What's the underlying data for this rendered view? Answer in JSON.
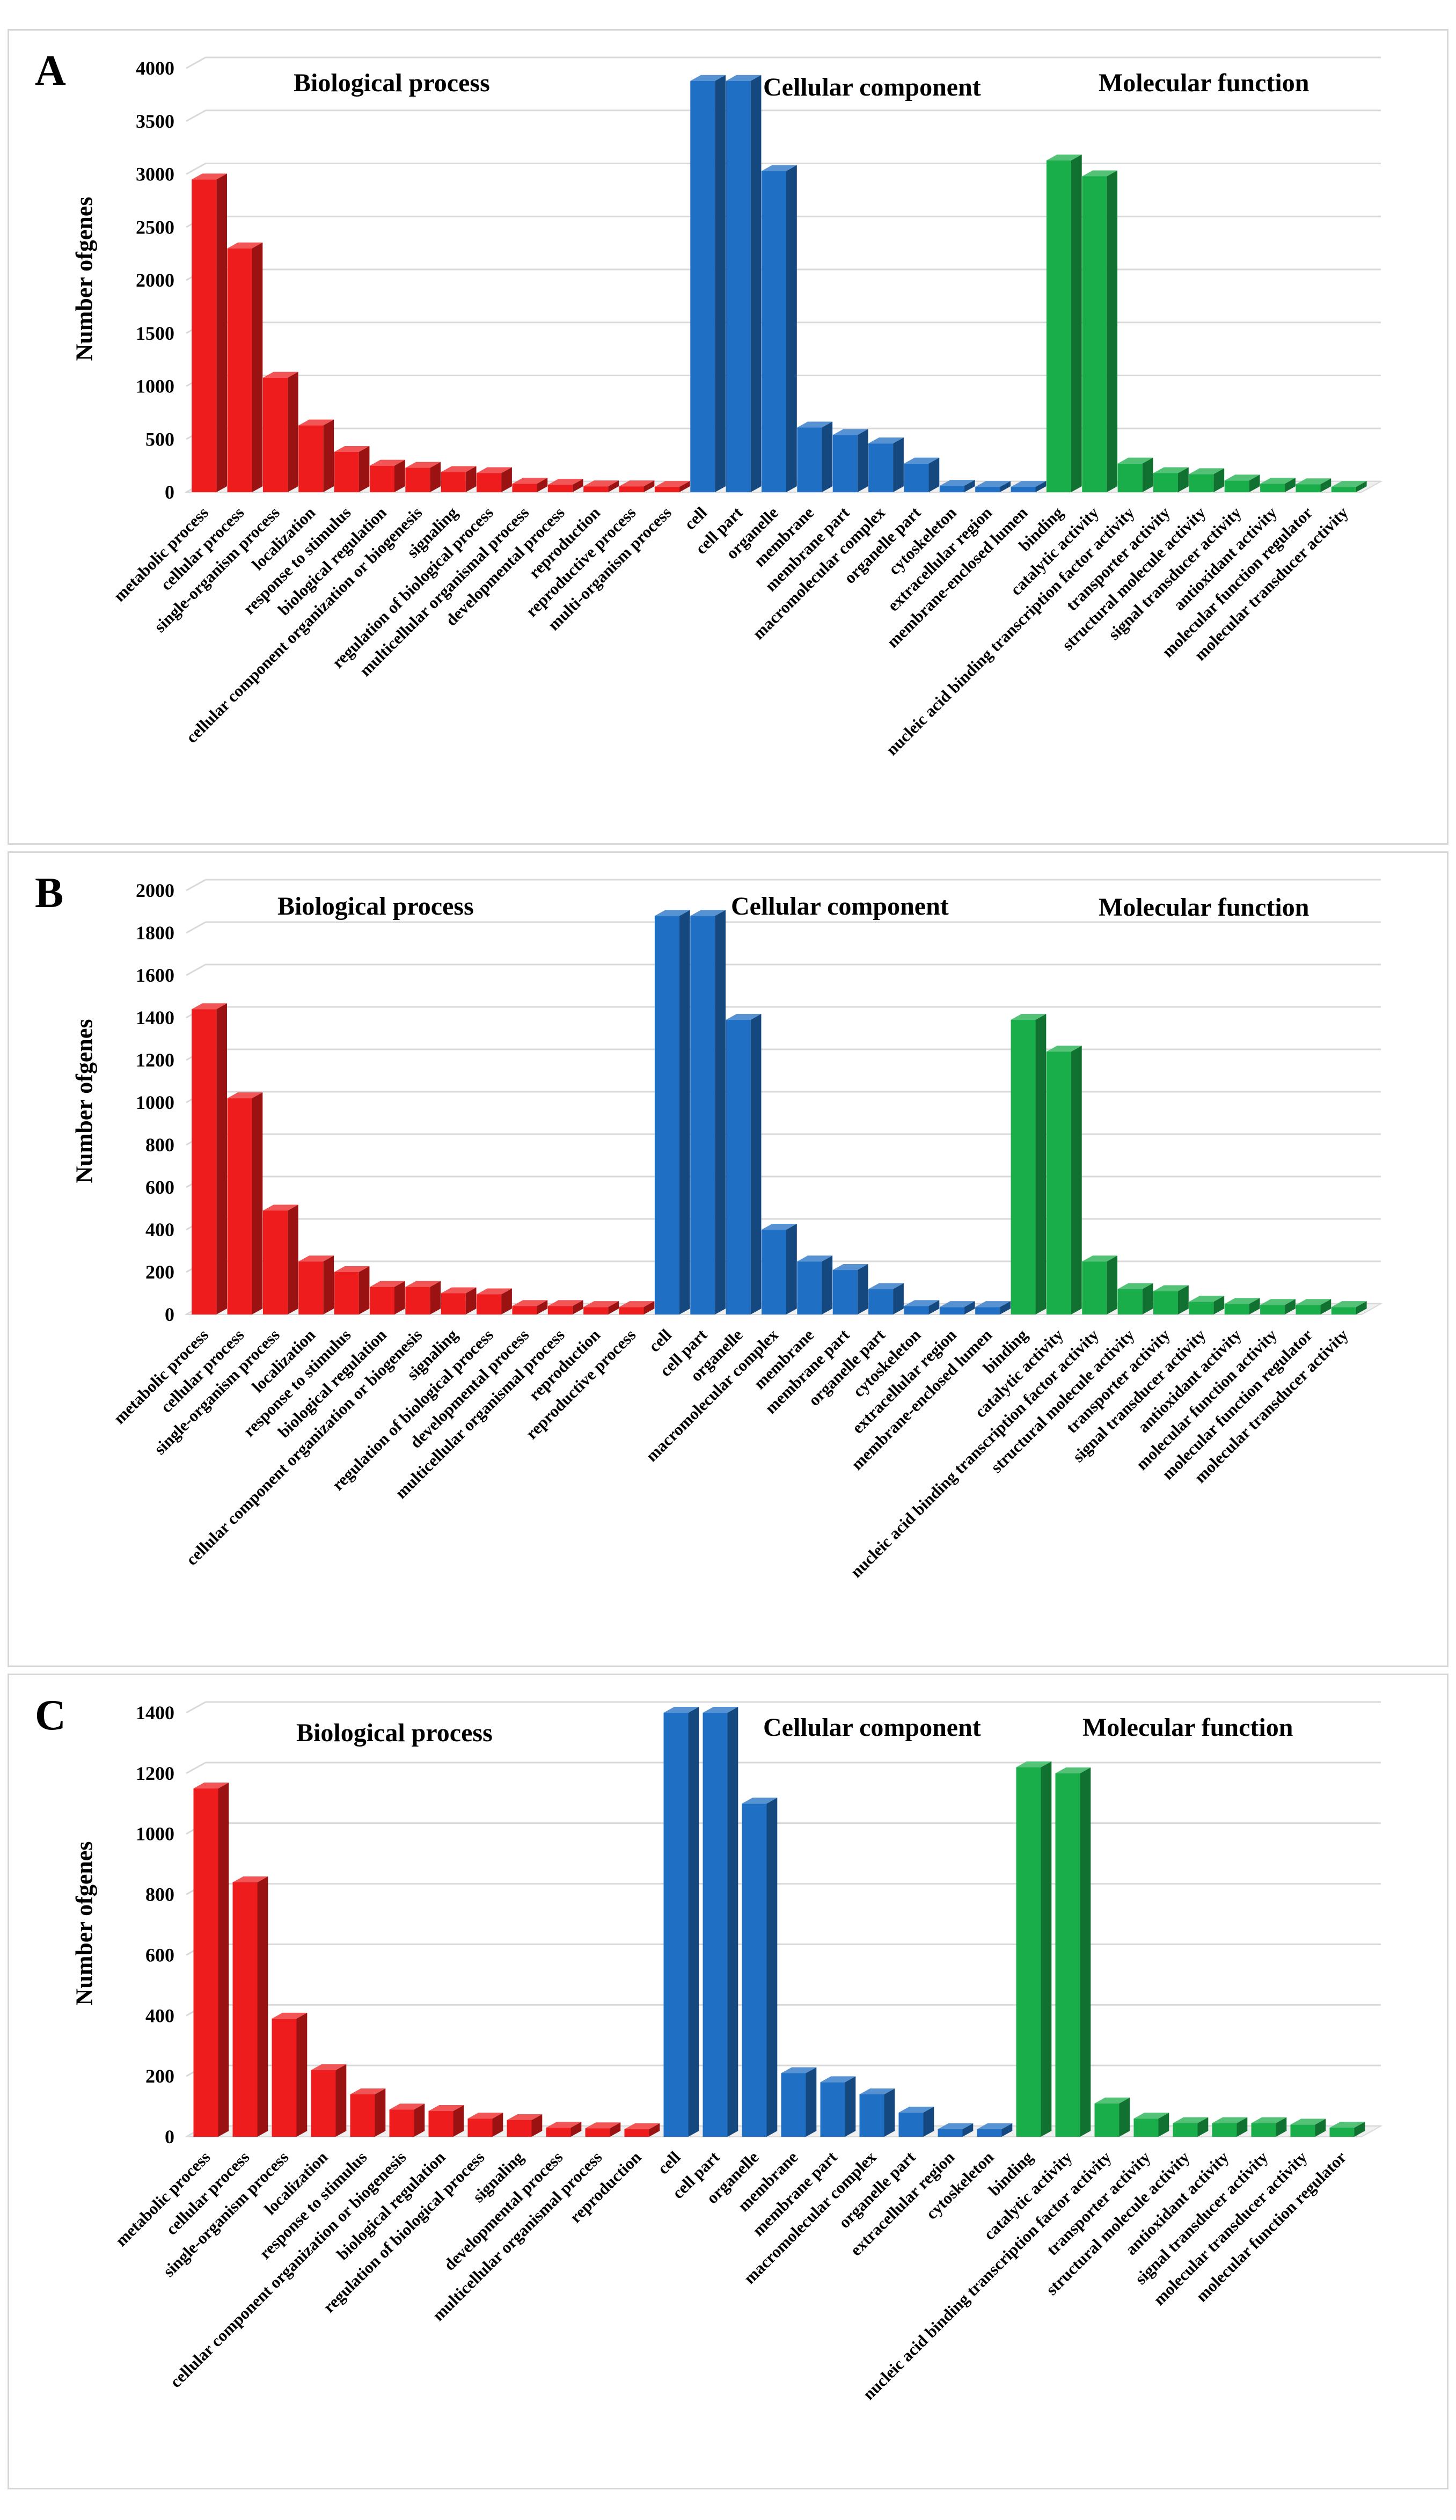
{
  "chart_data": [
    {
      "panel": "A",
      "type": "bar",
      "ylabel": "Number ofgenes",
      "yticks": [
        0,
        500,
        1000,
        1500,
        2000,
        2500,
        3000,
        3500,
        4000
      ],
      "ylim": [
        0,
        4000
      ],
      "groups": [
        {
          "name": "Biological process",
          "color": "#ee1c1c",
          "categories": [
            "metabolic process",
            "cellular process",
            "single-organism process",
            "localization",
            "response to stimulus",
            "biological regulation",
            "cellular component organization or biogenesis",
            "signaling",
            "regulation of biological process",
            "multicellular organismal process",
            "developmental process",
            "reproduction",
            "reproductive process",
            "multi-organism process"
          ],
          "values": [
            2950,
            2300,
            1080,
            630,
            380,
            250,
            230,
            190,
            180,
            80,
            70,
            55,
            55,
            50
          ]
        },
        {
          "name": "Cellular component",
          "color": "#1f6fc4",
          "categories": [
            "cell",
            "cell part",
            "organelle",
            "membrane",
            "membrane part",
            "macromolecular complex",
            "organelle part",
            "cytoskeleton",
            "extracellular region",
            "membrane-enclosed lumen"
          ],
          "values": [
            3880,
            3880,
            3030,
            610,
            540,
            460,
            270,
            60,
            50,
            50
          ]
        },
        {
          "name": "Molecular function",
          "color": "#1aae4a",
          "categories": [
            "binding",
            "catalytic activity",
            "nucleic acid binding transcription factor activity",
            "transporter activity",
            "structural molecule activity",
            "signal transducer activity",
            "antioxidant activity",
            "molecular function regulator",
            "molecular transducer activity"
          ],
          "values": [
            3130,
            2980,
            270,
            180,
            170,
            110,
            80,
            75,
            50
          ]
        }
      ]
    },
    {
      "panel": "B",
      "type": "bar",
      "ylabel": "Number ofgenes",
      "yticks": [
        0,
        200,
        400,
        600,
        800,
        1000,
        1200,
        1400,
        1600,
        1800,
        2000
      ],
      "ylim": [
        0,
        2000
      ],
      "groups": [
        {
          "name": "Biological process",
          "color": "#ee1c1c",
          "categories": [
            "metabolic process",
            "cellular process",
            "single-organism process",
            "localization",
            "response to stimulus",
            "biological regulation",
            "cellular component organization or biogenesis",
            "signaling",
            "regulation of biological process",
            "developmental process",
            "multicellular organismal process",
            "reproduction",
            "reproductive process"
          ],
          "values": [
            1440,
            1020,
            490,
            250,
            200,
            130,
            130,
            100,
            95,
            40,
            40,
            35,
            35
          ]
        },
        {
          "name": "Cellular component",
          "color": "#1f6fc4",
          "categories": [
            "cell",
            "cell part",
            "organelle",
            "macromolecular complex",
            "membrane",
            "membrane part",
            "organelle part",
            "cytoskeleton",
            "extracellular region",
            "membrane-enclosed lumen"
          ],
          "values": [
            1880,
            1880,
            1390,
            400,
            250,
            210,
            120,
            40,
            35,
            35
          ]
        },
        {
          "name": "Molecular function",
          "color": "#1aae4a",
          "categories": [
            "binding",
            "catalytic activity",
            "nucleic acid binding transcription factor activity",
            "structural molecule activity",
            "transporter activity",
            "signal transducer activity",
            "antioxidant activity",
            "molecular function activity",
            "molecular function regulator",
            "molecular transducer activity"
          ],
          "values": [
            1390,
            1240,
            250,
            120,
            110,
            60,
            50,
            45,
            45,
            35
          ]
        }
      ]
    },
    {
      "panel": "C",
      "type": "bar",
      "ylabel": "Number ofgenes",
      "yticks": [
        0,
        200,
        400,
        600,
        800,
        1000,
        1200,
        1400
      ],
      "ylim": [
        0,
        1400
      ],
      "groups": [
        {
          "name": "Biological process",
          "color": "#ee1c1c",
          "categories": [
            "metabolic process",
            "cellular process",
            "single-organism process",
            "localization",
            "response to stimulus",
            "cellular component organization or biogenesis",
            "biological regulation",
            "regulation of biological process",
            "signaling",
            "developmental process",
            "multicellular organismal process",
            "reproduction"
          ],
          "values": [
            1150,
            840,
            390,
            220,
            140,
            90,
            85,
            60,
            55,
            30,
            28,
            25
          ]
        },
        {
          "name": "Cellular component",
          "color": "#1f6fc4",
          "categories": [
            "cell",
            "cell part",
            "organelle",
            "membrane",
            "membrane part",
            "macromolecular complex",
            "organelle part",
            "extracellular region",
            "cytoskeleton"
          ],
          "values": [
            1400,
            1400,
            1100,
            210,
            180,
            140,
            80,
            25,
            25
          ]
        },
        {
          "name": "Molecular function",
          "color": "#1aae4a",
          "categories": [
            "binding",
            "catalytic activity",
            "nucleic acid binding transcription factor activity",
            "transporter activity",
            "structural molecule activity",
            "antioxidant activity",
            "signal transducer activity",
            "molecular transducer activity",
            "molecular function regulator"
          ],
          "values": [
            1220,
            1200,
            110,
            60,
            45,
            45,
            45,
            40,
            30
          ]
        }
      ]
    }
  ]
}
